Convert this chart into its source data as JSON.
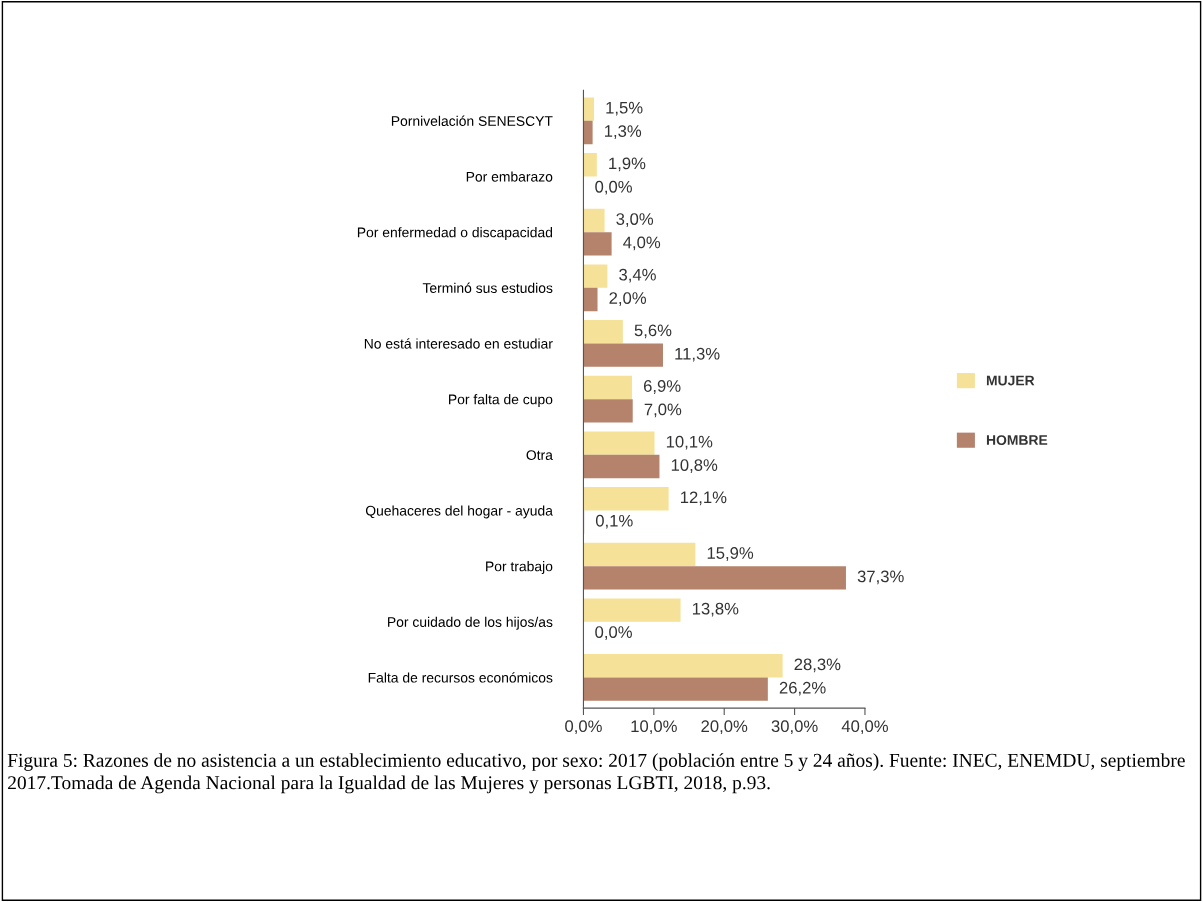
{
  "chart_data": {
    "type": "bar",
    "orientation": "horizontal",
    "categories": [
      "Pornivelación SENESCYT",
      "Por embarazo",
      "Por enfermedad o discapacidad",
      "Terminó sus estudios",
      "No está interesado en estudiar",
      "Por falta de cupo",
      "Otra",
      "Quehaceres del hogar - ayuda",
      "Por trabajo",
      "Por cuidado de los hijos/as",
      "Falta de recursos económicos"
    ],
    "series": [
      {
        "name": "MUJER",
        "color": "#f5e197",
        "values": [
          1.5,
          1.9,
          3.0,
          3.4,
          5.6,
          6.9,
          10.1,
          12.1,
          15.9,
          13.8,
          28.3
        ],
        "value_labels": [
          "1,5%",
          "1,9%",
          "3,0%",
          "3,4%",
          "5,6%",
          "6,9%",
          "10,1%",
          "12,1%",
          "15,9%",
          "13,8%",
          "28,3%"
        ]
      },
      {
        "name": "HOMBRE",
        "color": "#b5826b",
        "values": [
          1.3,
          0.0,
          4.0,
          2.0,
          11.3,
          7.0,
          10.8,
          0.1,
          37.3,
          0.0,
          26.2
        ],
        "value_labels": [
          "1,3%",
          "0,0%",
          "4,0%",
          "2,0%",
          "11,3%",
          "7,0%",
          "10,8%",
          "0,1%",
          "37,3%",
          "0,0%",
          "26,2%"
        ]
      }
    ],
    "xlim": [
      0,
      40
    ],
    "xticks": [
      {
        "value": 0,
        "label": "0,0%"
      },
      {
        "value": 10,
        "label": "10,0%"
      },
      {
        "value": 20,
        "label": "20,0%"
      },
      {
        "value": 30,
        "label": "30,0%"
      },
      {
        "value": 40,
        "label": "40,0%"
      }
    ],
    "legend": "right",
    "grid": false,
    "annotations": [
      "Figura 5: Razones de no asistencia a un establecimiento educativo, por sexo: 2017 (población entre 5 y 24 años). Fuente: INEC, ENEMDU, septiembre 2017.Tomada de Agenda Nacional para la Igualdad de las Mujeres y personas LGBTI, 2018, p.93."
    ]
  }
}
